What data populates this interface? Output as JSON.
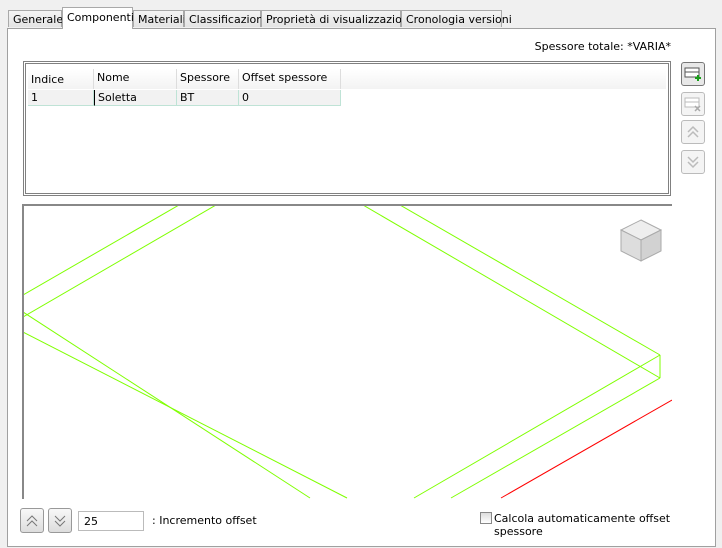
{
  "tabs": [
    {
      "label": "Generale"
    },
    {
      "label": "Componenti",
      "active": true
    },
    {
      "label": "Materiali"
    },
    {
      "label": "Classificazioni"
    },
    {
      "label": "Proprietà di visualizzazione"
    },
    {
      "label": "Cronologia versioni"
    }
  ],
  "total_thickness": "Spessore totale: *VARIA*",
  "table": {
    "columns": [
      "Indice",
      "Nome",
      "Spessore",
      "Offset spessore"
    ],
    "rows": [
      [
        "1",
        "Soletta",
        "BT",
        "0"
      ]
    ]
  },
  "side_buttons": [
    {
      "icon": "add-layer-icon",
      "enabled": true
    },
    {
      "icon": "delete-layer-icon",
      "enabled": false
    },
    {
      "icon": "move-up-icon",
      "enabled": false
    },
    {
      "icon": "move-down-icon",
      "enabled": false
    }
  ],
  "viewport": {
    "line_color": "#7fff00",
    "axis_color": "#ff0000",
    "viewcube_icon": "viewcube-icon"
  },
  "bottom": {
    "offset_increment_value": "25",
    "offset_increment_label": ": Incremento offset",
    "auto_offset_label": "Calcola automaticamente offset spessore",
    "auto_offset_checked": false
  }
}
